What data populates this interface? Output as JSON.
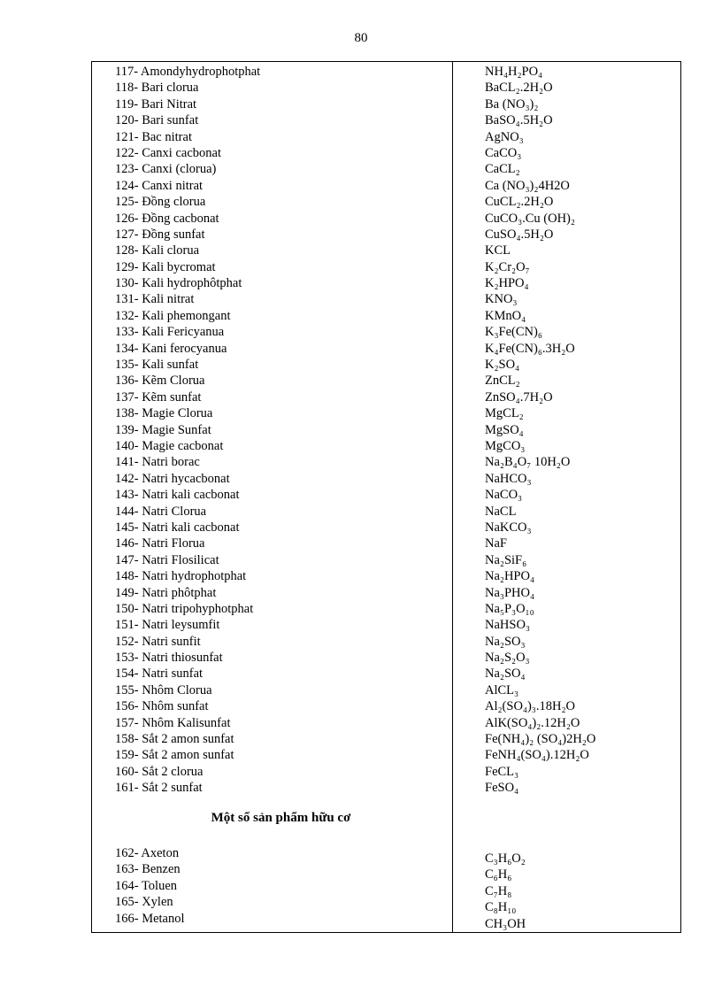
{
  "page_number": "80",
  "inorganic": [
    {
      "name": "117- Amondyhydrophotphat",
      "formula": "NH₄H₂PO₄"
    },
    {
      "name": "118- Bari clorua",
      "formula": "BaCL₂.2H₂O"
    },
    {
      "name": "119- Bari Nitrat",
      "formula": "Ba (NO₃)₂"
    },
    {
      "name": "120- Bari sunfat",
      "formula": "BaSO₄.5H₂O"
    },
    {
      "name": "121- Bac nitrat",
      "formula": "AgNO₃"
    },
    {
      "name": "122- Canxi cacbonat",
      "formula": "CaCO₃"
    },
    {
      "name": "123- Canxi (clorua)",
      "formula": "CaCL₂"
    },
    {
      "name": "124- Canxi nitrat",
      "formula": "Ca (NO₃)₂4H2O"
    },
    {
      "name": "125- Đồng clorua",
      "formula": "CuCL₂.2H₂O"
    },
    {
      "name": "126- Đồng cacbonat",
      "formula": "CuCO₃.Cu (OH)₂"
    },
    {
      "name": "127- Đồng sunfat",
      "formula": "CuSO₄.5H₂O"
    },
    {
      "name": "128- Kali clorua",
      "formula": "KCL"
    },
    {
      "name": "129- Kali bycromat",
      "formula": "K₂Cr₂O₇"
    },
    {
      "name": "130- Kali hydrophôtphat",
      "formula": "K₂HPO₄"
    },
    {
      "name": "131- Kali nitrat",
      "formula": "KNO₃"
    },
    {
      "name": "132- Kali phemongant",
      "formula": "KMnO₄"
    },
    {
      "name": "133- Kali Fericyanua",
      "formula": "K₃Fe(CN)₆"
    },
    {
      "name": "134- Kani ferocyanua",
      "formula": "K₄Fe(CN)₆.3H₂O"
    },
    {
      "name": "135- Kali sunfat",
      "formula": "K₂SO₄"
    },
    {
      "name": "136- Kẽm Clorua",
      "formula": "ZnCL₂"
    },
    {
      "name": "137- Kẽm sunfat",
      "formula": "ZnSO₄.7H₂O"
    },
    {
      "name": "138- Magie Clorua",
      "formula": "MgCL₂"
    },
    {
      "name": "139- Magie Sunfat",
      "formula": "MgSO₄"
    },
    {
      "name": "140- Magie cacbonat",
      "formula": "MgCO₃"
    },
    {
      "name": "141- Natri borac",
      "formula": "Na₂B₄O₇ 10H₂O"
    },
    {
      "name": "142- Natri hycacbonat",
      "formula": "NaHCO₃"
    },
    {
      "name": "143- Natri kali cacbonat",
      "formula": "NaCO₃"
    },
    {
      "name": "144- Natri Clorua",
      "formula": "NaCL"
    },
    {
      "name": "145- Natri kali cacbonat",
      "formula": "NaKCO₃"
    },
    {
      "name": "146- Natri Florua",
      "formula": "NaF"
    },
    {
      "name": "147- Natri Flosilicat",
      "formula": "Na₂SiF₆"
    },
    {
      "name": "148- Natri hydrophotphat",
      "formula": "Na₂HPO₄"
    },
    {
      "name": "149- Natri phôtphat",
      "formula": "Na₃PHO₄"
    },
    {
      "name": "150- Natri tripohyphotphat",
      "formula": "Na₅P₃O₁₀"
    },
    {
      "name": "151- Natri leysumfit",
      "formula": "NaHSO₃"
    },
    {
      "name": "152- Natri sunfit",
      "formula": "Na₂SO₃"
    },
    {
      "name": "153- Natri thiosunfat",
      "formula": "Na₂S₂O₃"
    },
    {
      "name": "154- Natri sunfat",
      "formula": "Na₂SO₄"
    },
    {
      "name": "155- Nhôm Clorua",
      "formula": "AlCL₃"
    },
    {
      "name": "156- Nhôm sunfat",
      "formula": "Al₂(SO₄)₃.18H₂O"
    },
    {
      "name": "157- Nhôm Kalisunfat",
      "formula": "AlK(SO₄)₂.12H₂O"
    },
    {
      "name": "158- Sắt 2 amon sunfat",
      "formula": "Fe(NH₄)₂ (SO₄)2H₂O"
    },
    {
      "name": "159- Sắt 2 amon sunfat",
      "formula": "FeNH₄(SO₄).12H₂O"
    },
    {
      "name": "160- Sắt 2 clorua",
      "formula": "FeCL₃"
    },
    {
      "name": "161- Sắt 2 sunfat",
      "formula": "FeSO₄"
    }
  ],
  "organic_heading": "Một số sản phẩm hữu cơ",
  "organic": [
    {
      "name": "162- Axeton",
      "formula": "C₃H₆O₂"
    },
    {
      "name": "163- Benzen",
      "formula": "C₆H₆"
    },
    {
      "name": "164- Toluen",
      "formula": "C₇H₈"
    },
    {
      "name": "165- Xylen",
      "formula": "C₈H₁₀"
    },
    {
      "name": "166- Metanol",
      "formula": "CH₃OH"
    }
  ]
}
